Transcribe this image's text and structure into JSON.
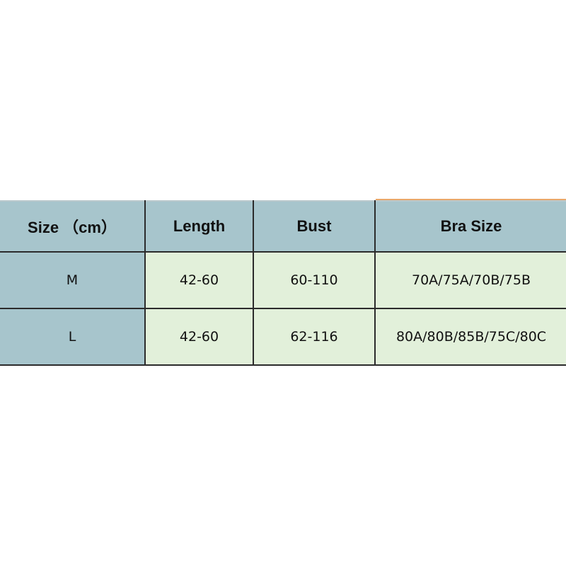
{
  "table": {
    "header": [
      "Size （cm）",
      "Length",
      "Bust",
      "Bra Size"
    ],
    "rows": [
      [
        "M",
        "42-60",
        "60-110",
        "70A/75A/70B/75B"
      ],
      [
        "L",
        "42-60",
        "62-116",
        "80A/80B/85B/75C/80C"
      ]
    ]
  }
}
